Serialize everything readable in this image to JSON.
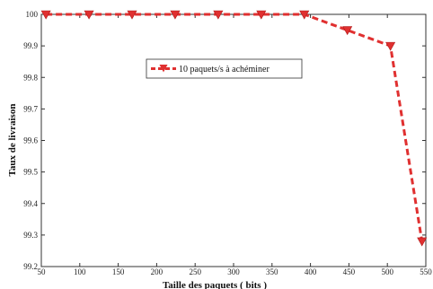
{
  "chart_data": {
    "type": "line",
    "xlabel": "Taille des paquets ( bits )",
    "ylabel": "Taux de livraison",
    "xlim": [
      50,
      550
    ],
    "ylim": [
      99.2,
      100
    ],
    "x_ticks": [
      50,
      100,
      150,
      200,
      250,
      300,
      350,
      400,
      450,
      500,
      550
    ],
    "x_tick_labels": [
      "50",
      "100",
      "150",
      "200",
      "250",
      "300",
      "350",
      "400",
      "450",
      "500",
      "550"
    ],
    "y_ticks": [
      99.2,
      99.3,
      99.4,
      99.5,
      99.6,
      99.7,
      99.8,
      99.9,
      100
    ],
    "y_tick_labels": [
      "99.2",
      "99.3",
      "99.4",
      "99.5",
      "99.6",
      "99.7",
      "99.8",
      "99.9",
      "100"
    ],
    "grid": false,
    "legend_position": "upper-center",
    "series": [
      {
        "name": "10 paquets/s à achéminer",
        "color": "#e03030",
        "line_style": "dashed",
        "marker": "down-triangle",
        "x": [
          56,
          112,
          168,
          224,
          280,
          336,
          392,
          448,
          504,
          545
        ],
        "y": [
          100,
          100,
          100,
          100,
          100,
          100,
          100,
          99.95,
          99.9,
          99.28
        ]
      }
    ]
  }
}
